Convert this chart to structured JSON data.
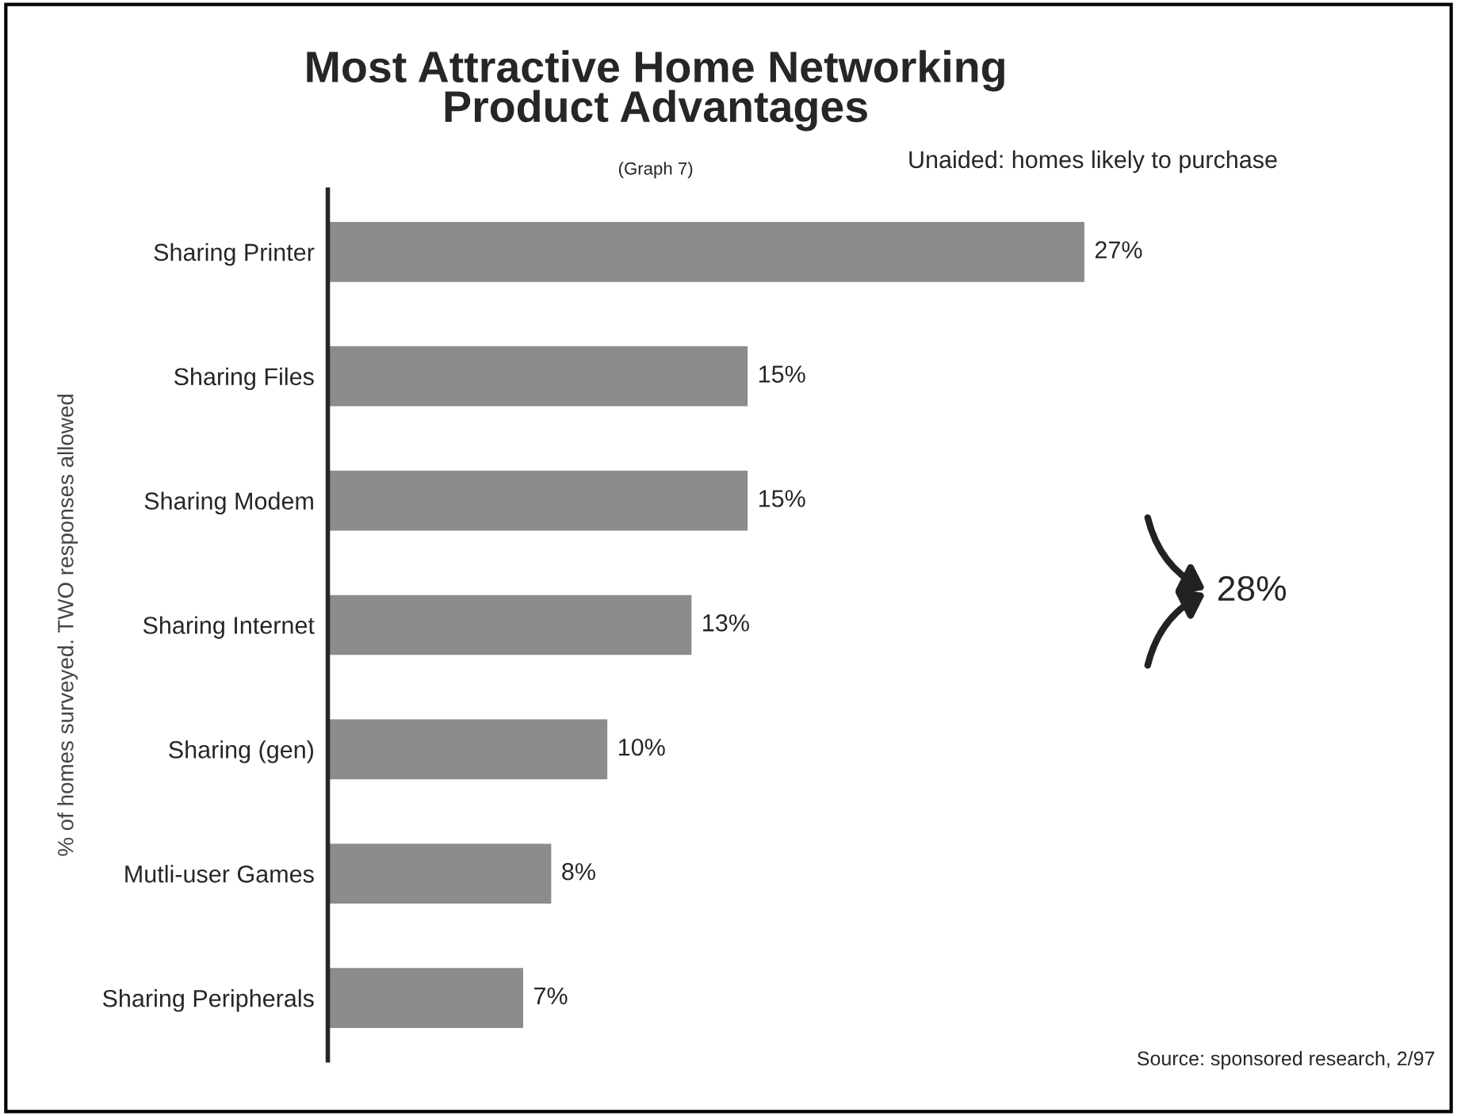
{
  "chart_data": {
    "type": "bar",
    "orientation": "horizontal",
    "title": "Most Attractive Home Networking\nProduct Advantages",
    "subtitle": "(Graph 7)",
    "ylabel": "% of homes surveyed. TWO responses allowed",
    "categories": [
      "Sharing Printer",
      "Sharing Files",
      "Sharing Modem",
      "Sharing Internet",
      "Sharing (gen)",
      "Mutli-user Games",
      "Sharing Peripherals"
    ],
    "values": [
      27,
      15,
      15,
      13,
      10,
      8,
      7
    ],
    "value_labels": [
      "27%",
      "15%",
      "15%",
      "13%",
      "10%",
      "8%",
      "7%"
    ],
    "color": "#8c8c8c",
    "annotations": [
      "Unaided: homes likely to purchase",
      "28%",
      "Source: sponsored research, 2/97"
    ]
  }
}
